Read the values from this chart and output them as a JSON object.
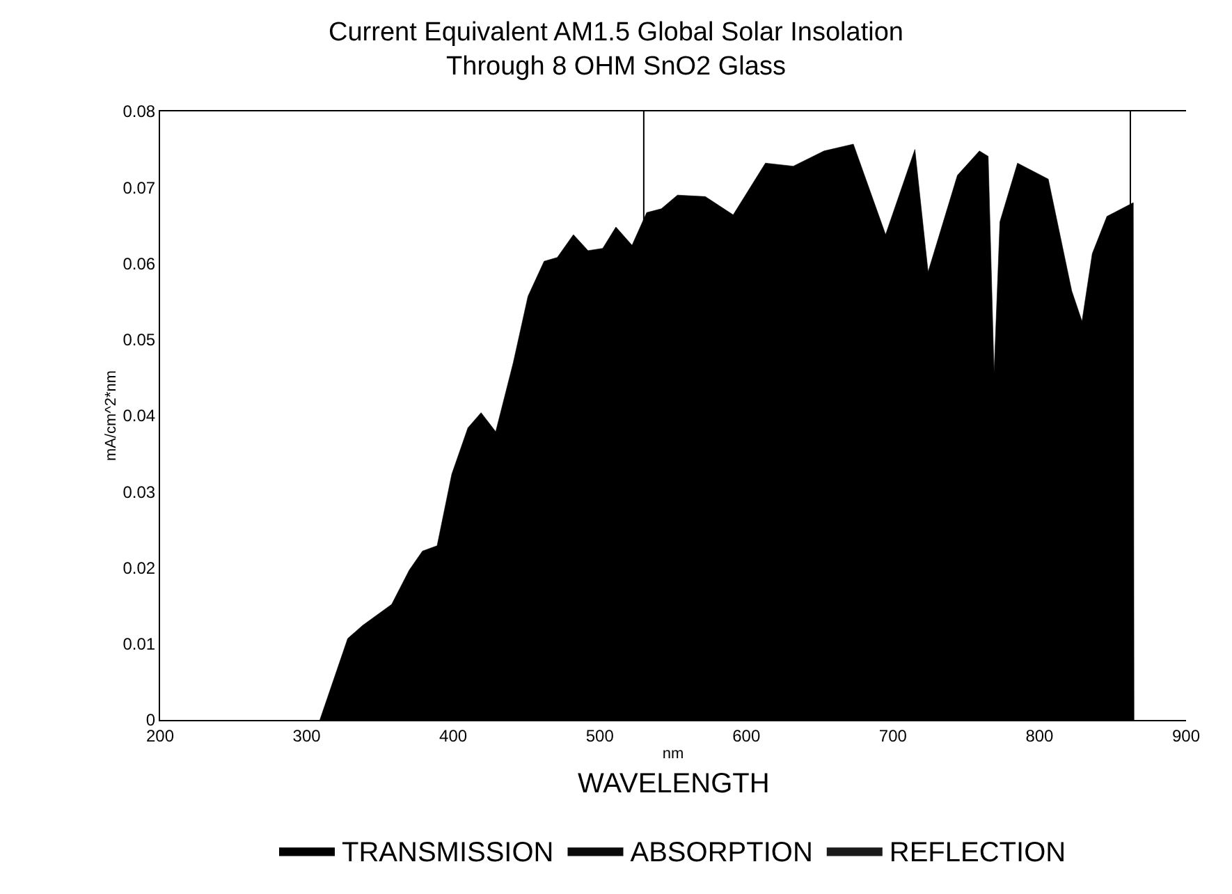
{
  "chart_data": {
    "type": "area",
    "title": "Current Equivalent AM1.5 Global Solar Insolation\nThrough 8 OHM SnO2 Glass",
    "xlabel": "nm",
    "ylabel": "mA/cm^2*nm",
    "annotations": [
      "WAVELENGTH"
    ],
    "x": [
      309,
      328,
      338,
      358,
      370,
      379,
      389,
      399,
      410,
      419,
      429,
      441,
      451,
      462,
      471,
      482,
      492,
      502,
      511,
      522,
      532,
      542,
      553,
      572,
      591,
      613,
      632,
      653,
      673,
      695,
      715,
      724,
      744,
      759,
      765,
      769,
      773,
      785,
      806,
      822,
      829,
      836,
      846,
      864,
      864.5
    ],
    "series": [
      {
        "name": "TRANSMISSION",
        "color": "#000000",
        "values": [
          0,
          0.0107,
          0.0124,
          0.0152,
          0.0197,
          0.0222,
          0.0229,
          0.0323,
          0.0384,
          0.0404,
          0.0379,
          0.047,
          0.0557,
          0.0603,
          0.0608,
          0.0638,
          0.0617,
          0.062,
          0.0648,
          0.0624,
          0.0667,
          0.0672,
          0.069,
          0.0688,
          0.0664,
          0.0732,
          0.0728,
          0.0748,
          0.0757,
          0.0638,
          0.075,
          0.0589,
          0.0716,
          0.0748,
          0.0741,
          0.0456,
          0.0655,
          0.0732,
          0.0711,
          0.0564,
          0.0524,
          0.0613,
          0.0662,
          0.068,
          0
        ]
      },
      {
        "name": "ABSORPTION",
        "color": "#0a0a0a",
        "values": [
          null,
          null,
          null,
          null,
          null,
          null,
          null,
          null,
          null,
          null,
          null,
          null,
          null,
          null,
          null,
          null,
          null,
          null,
          null,
          null,
          null,
          null,
          null,
          null,
          null,
          null,
          null,
          null,
          null,
          null,
          null,
          null,
          null,
          null,
          null,
          null,
          null,
          null,
          null,
          null,
          null,
          null,
          null,
          null,
          null
        ]
      },
      {
        "name": "REFLECTION",
        "color": "#1a1a1a",
        "values": [
          null,
          null,
          null,
          null,
          null,
          null,
          null,
          null,
          null,
          null,
          null,
          null,
          null,
          null,
          null,
          null,
          null,
          null,
          null,
          null,
          null,
          null,
          null,
          null,
          null,
          null,
          null,
          null,
          null,
          null,
          null,
          null,
          null,
          null,
          null,
          null,
          null,
          null,
          null,
          null,
          null,
          null,
          null,
          null,
          null
        ]
      }
    ],
    "xlim": [
      200,
      900
    ],
    "xticks": [
      200,
      300,
      400,
      500,
      600,
      700,
      800,
      900
    ],
    "ylim": [
      0,
      0.08
    ],
    "yticks": [
      0,
      0.01,
      0.02,
      0.03,
      0.04,
      0.05,
      0.06,
      0.07,
      0.08
    ],
    "ref_lines": [
      {
        "axis": "x",
        "value": 530,
        "label": null,
        "color": "#000000"
      },
      {
        "axis": "x",
        "value": 862,
        "label": null,
        "color": "#000000"
      }
    ],
    "grid": false,
    "legend": "bottom"
  }
}
